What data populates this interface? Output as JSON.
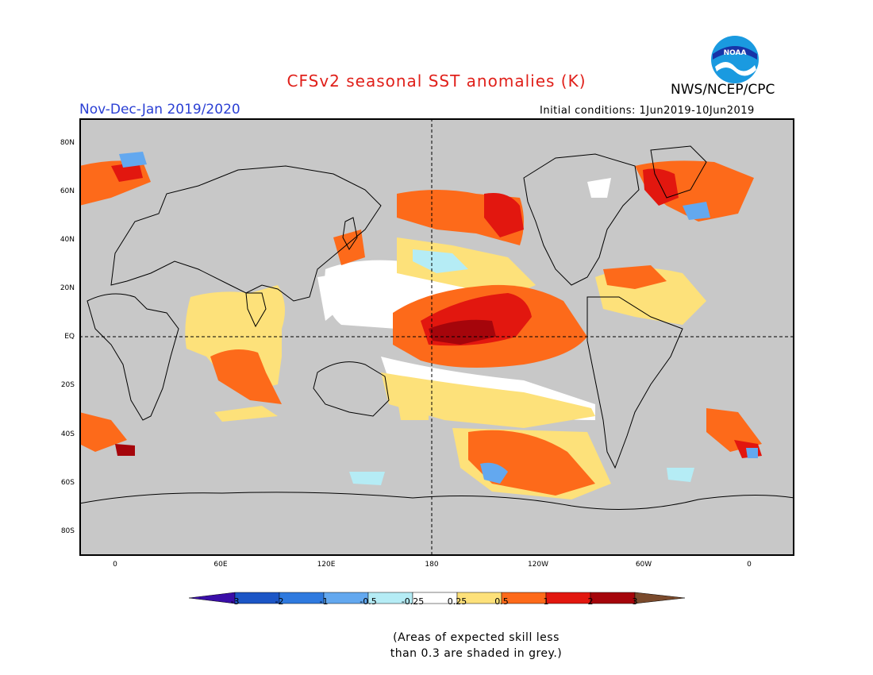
{
  "header": {
    "title": "CFSv2 seasonal SST anomalies (K)",
    "org": "NWS/NCEP/CPC",
    "season": "Nov-Dec-Jan 2019/2020",
    "initial_conditions": "Initial conditions: 1Jun2019-10Jun2019",
    "logo_label": "NOAA"
  },
  "map": {
    "lat_labels": [
      "80N",
      "60N",
      "40N",
      "20N",
      "EQ",
      "20S",
      "40S",
      "60S",
      "80S"
    ],
    "lon_labels": [
      "0",
      "60E",
      "120E",
      "180",
      "120W",
      "60W",
      "0"
    ],
    "colors": {
      "land": "#c8c8c8",
      "neutral": "#ffffff",
      "pos_025": "#fde17a",
      "pos_05": "#fd6a1a",
      "pos_1": "#e2170f",
      "pos_2": "#a5050b",
      "neg_025": "#b5ecf5",
      "neg_05": "#63a8ef",
      "neg_1": "#2f7adf",
      "neg_2": "#1c56c6"
    }
  },
  "colorbar": {
    "labels": [
      "-3",
      "-2",
      "-1",
      "-0.5",
      "-0.25",
      "0.25",
      "0.5",
      "1",
      "2",
      "3"
    ],
    "colors": [
      "#3a0ea8",
      "#1c56c6",
      "#2f7adf",
      "#63a8ef",
      "#b5ecf5",
      "#ffffff",
      "#fde17a",
      "#fd6a1a",
      "#e2170f",
      "#a5050b",
      "#7a4a2c"
    ]
  },
  "note": {
    "line1": "(Areas of expected skill less",
    "line2": "than 0.3 are shaded in grey.)"
  }
}
